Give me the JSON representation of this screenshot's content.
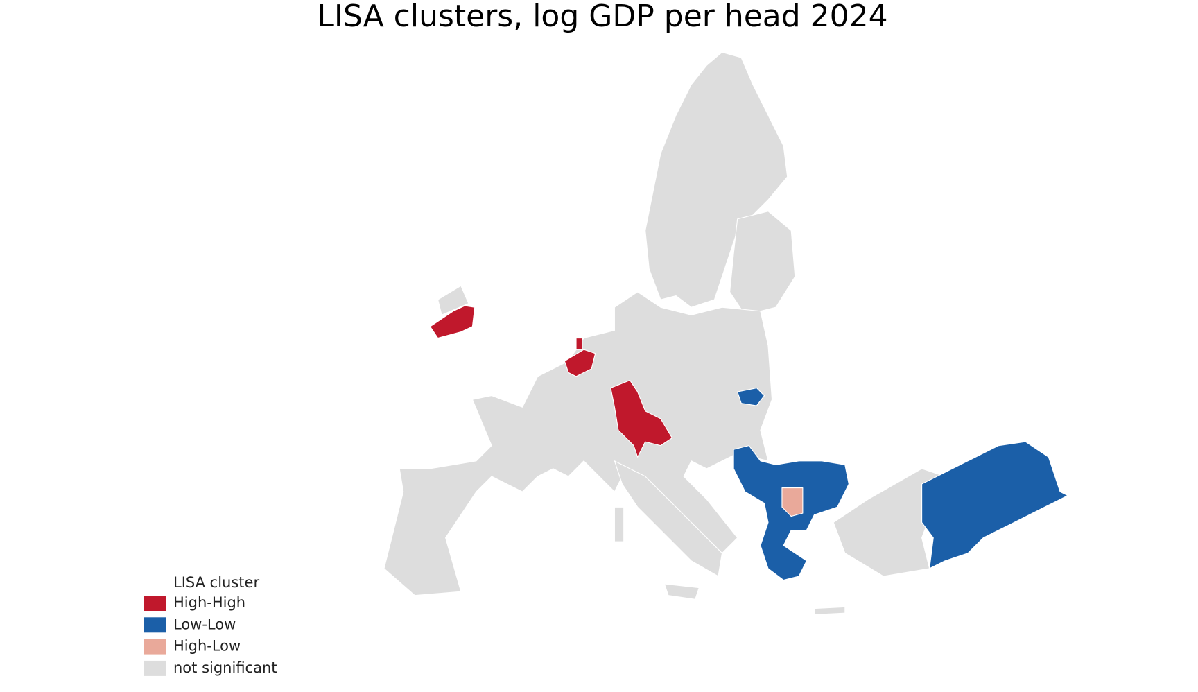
{
  "title": "LISA clusters, log GDP per head 2024",
  "legend": {
    "title": "LISA cluster",
    "items": [
      {
        "label": "High-High",
        "color": "#c0182c"
      },
      {
        "label": "Low-Low",
        "color": "#1b5fa8"
      },
      {
        "label": "High-Low",
        "color": "#e9a99a"
      },
      {
        "label": "not significant",
        "color": "#dddddd"
      }
    ]
  }
}
